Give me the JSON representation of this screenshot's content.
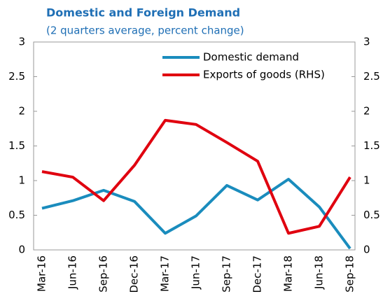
{
  "chart_data": {
    "type": "line",
    "title": "Domestic and Foreign Demand",
    "subtitle": "(2 quarters average, percent change)",
    "categories": [
      "Mar-16",
      "Jun-16",
      "Sep-16",
      "Dec-16",
      "Mar-17",
      "Jun-17",
      "Sep-17",
      "Dec-17",
      "Mar-18",
      "Jun-18",
      "Sep-18"
    ],
    "series": [
      {
        "name": "Domestic demand",
        "color": "#1a8cbd",
        "values": [
          0.6,
          0.71,
          0.86,
          0.7,
          0.24,
          0.49,
          0.93,
          0.72,
          1.02,
          0.62,
          0.02
        ]
      },
      {
        "name": "Exports of goods (RHS)",
        "color": "#e0000f",
        "axis": "y2",
        "values": [
          1.13,
          1.05,
          0.71,
          1.22,
          1.87,
          1.81,
          1.55,
          1.28,
          0.24,
          0.34,
          1.05
        ]
      }
    ],
    "ylim": [
      0,
      3
    ],
    "yticks": [
      0,
      0.5,
      1,
      1.5,
      2,
      2.5,
      3
    ],
    "y2lim": [
      0,
      3
    ],
    "y2ticks": [
      0,
      0.5,
      1,
      1.5,
      2,
      2.5,
      3
    ],
    "legend": "upper right",
    "grid": false
  }
}
